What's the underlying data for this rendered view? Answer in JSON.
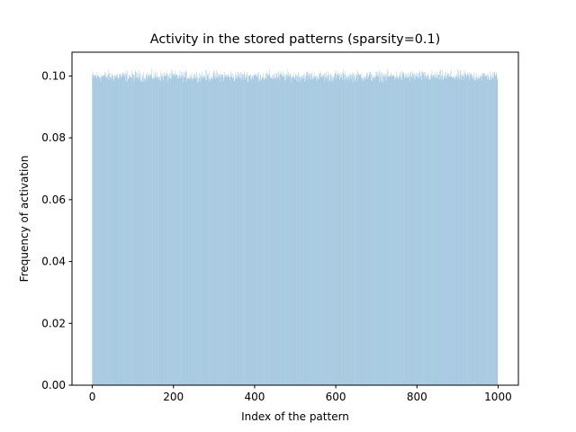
{
  "chart_data": {
    "type": "bar",
    "title": "Activity in the stored patterns (sparsity=0.1)",
    "xlabel": "Index of the pattern",
    "ylabel": "Frequency of activation",
    "xlim": [
      -50,
      1050
    ],
    "ylim": [
      0,
      0.1077
    ],
    "x_ticks": [
      0,
      200,
      400,
      600,
      800,
      1000
    ],
    "y_ticks": [
      0.0,
      0.02,
      0.04,
      0.06,
      0.08,
      0.1
    ],
    "x_tick_labels": [
      "0",
      "200",
      "400",
      "600",
      "800",
      "1000"
    ],
    "y_tick_labels": [
      "0.00",
      "0.02",
      "0.04",
      "0.06",
      "0.08",
      "0.10"
    ],
    "bar_color": "#1f77b4",
    "bar_alpha": 0.5,
    "n_patterns": 1000,
    "x_start": 0,
    "mean_value": 0.1,
    "value_range": [
      0.098,
      0.1025
    ],
    "grid": false,
    "legend": "none"
  }
}
